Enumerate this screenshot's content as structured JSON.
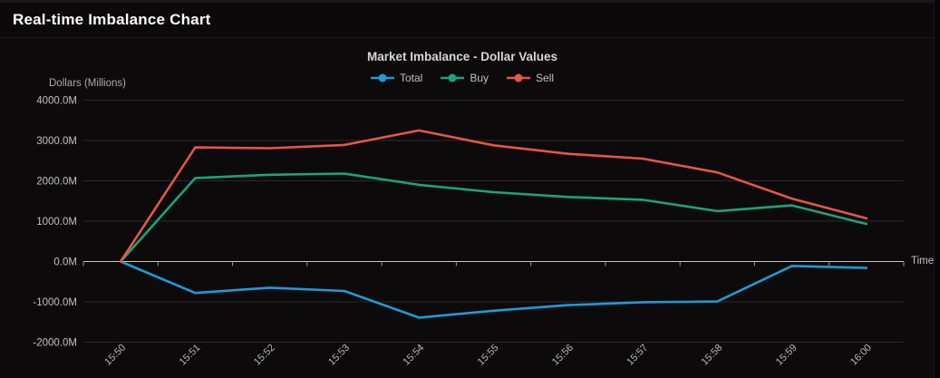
{
  "header": {
    "title": "Real-time Imbalance Chart"
  },
  "chart": {
    "title": "Market Imbalance - Dollar Values",
    "y_axis_name": "Dollars (Millions)",
    "x_axis_name": "Time"
  },
  "chart_data": {
    "type": "line",
    "title": "Market Imbalance - Dollar Values",
    "xlabel": "Time",
    "ylabel": "Dollars (Millions)",
    "categories": [
      "15:50",
      "15:51",
      "15:52",
      "15:53",
      "15:54",
      "15:55",
      "15:56",
      "15:57",
      "15:58",
      "15:59",
      "16:00"
    ],
    "series": [
      {
        "name": "Total",
        "color": "#1f9ad6",
        "values": [
          0,
          -780,
          -650,
          -730,
          -1390,
          -1220,
          -1080,
          -1010,
          -990,
          -110,
          -160
        ]
      },
      {
        "name": "Buy",
        "color": "#18a57e",
        "values": [
          0,
          2070,
          2150,
          2180,
          1900,
          1720,
          1600,
          1530,
          1250,
          1390,
          930
        ]
      },
      {
        "name": "Sell",
        "color": "#e85449",
        "values": [
          0,
          2830,
          2810,
          2890,
          3250,
          2880,
          2670,
          2550,
          2210,
          1560,
          1070
        ]
      }
    ],
    "ylim": [
      -2000,
      4000
    ],
    "y_ticks": [
      {
        "label": "4000.0M",
        "value": 4000
      },
      {
        "label": "3000.0M",
        "value": 3000
      },
      {
        "label": "2000.0M",
        "value": 2000
      },
      {
        "label": "1000.0M",
        "value": 1000
      },
      {
        "label": "0.0M",
        "value": 0
      },
      {
        "label": "-1000.0M",
        "value": -1000
      },
      {
        "label": "-2000.0M",
        "value": -2000
      }
    ],
    "grid": true,
    "legend_position": "top",
    "x_label_rotation": -45
  }
}
